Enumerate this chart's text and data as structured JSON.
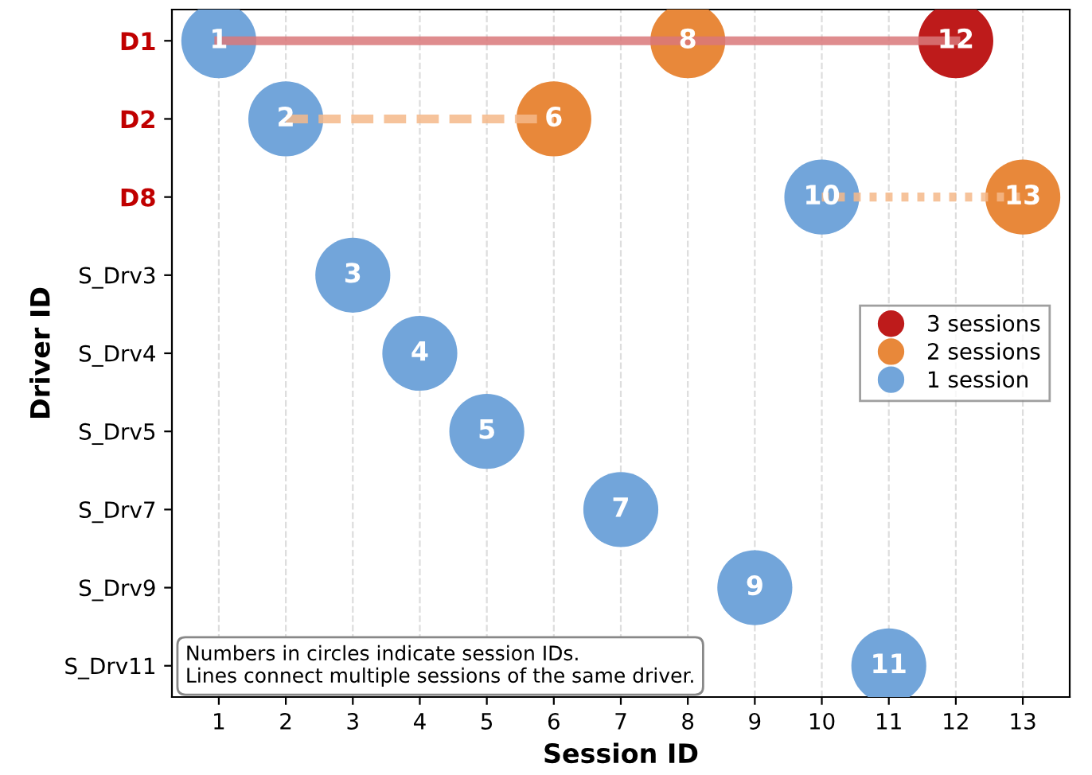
{
  "chart_data": {
    "type": "scatter",
    "orientation": "horizontal",
    "xlabel": "Session ID",
    "ylabel": "Driver ID",
    "categories": [
      "D1",
      "D2",
      "D8",
      "S_Drv3",
      "S_Drv4",
      "S_Drv5",
      "S_Drv7",
      "S_Drv9",
      "S_Drv11"
    ],
    "xlim": [
      0.3,
      13.7
    ],
    "xticks": [
      1,
      2,
      3,
      4,
      5,
      6,
      7,
      8,
      9,
      10,
      11,
      12,
      13
    ],
    "grid": "x",
    "legend": "right",
    "series": [
      {
        "type": "line",
        "color": "#d9787a",
        "line_style": "solid",
        "x": [
          "D1",
          "D1",
          "D1"
        ],
        "values": [
          1,
          8,
          12
        ]
      },
      {
        "type": "line",
        "color": "#f4b98a",
        "line_style": "dashed",
        "x": [
          "D2",
          "D2"
        ],
        "values": [
          2,
          6
        ]
      },
      {
        "type": "line",
        "color": "#f4b98a",
        "line_style": "dotted",
        "x": [
          "D8",
          "D8"
        ],
        "values": [
          10,
          13
        ]
      },
      {
        "name": "3 sessions",
        "marker": "circle",
        "color": "#be1b1b",
        "values": [
          12,
          null,
          null,
          null,
          null,
          null,
          null,
          null,
          null
        ],
        "value_labels": [
          "12",
          null,
          null,
          null,
          null,
          null,
          null,
          null,
          null
        ]
      },
      {
        "name": "2 sessions",
        "marker": "circle",
        "color": "#e8883a",
        "values": [
          8,
          6,
          13,
          null,
          null,
          null,
          null,
          null,
          null
        ],
        "value_labels": [
          "8",
          "6",
          "13",
          null,
          null,
          null,
          null,
          null,
          null
        ]
      },
      {
        "name": "1 session",
        "marker": "circle",
        "color": "#72a5da",
        "values": [
          1,
          2,
          10,
          3,
          4,
          5,
          7,
          9,
          11
        ],
        "value_labels": [
          "1",
          "2",
          "10",
          "3",
          "4",
          "5",
          "7",
          "9",
          "11"
        ]
      }
    ],
    "annotations": [
      "Numbers in circles indicate session IDs.\nLines connect multiple sessions of the same driver."
    ]
  }
}
